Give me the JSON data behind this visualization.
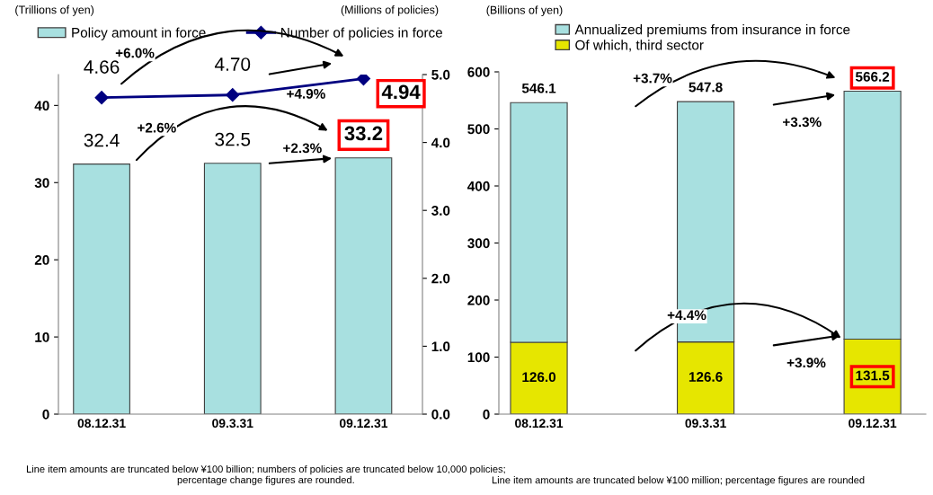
{
  "chart_data": [
    {
      "type": "bar",
      "ylabel": "(Trillions of yen)",
      "y2label": "(Millions of policies)",
      "categories": [
        "08.12.31",
        "09.3.31",
        "09.12.31"
      ],
      "series": [
        {
          "name": "Policy amount in force",
          "color": "#a8e0e0",
          "values": [
            32.4,
            32.5,
            33.2
          ],
          "value_labels": [
            "32.4",
            "32.5",
            "33.2"
          ]
        },
        {
          "name": "Number of policies in force",
          "type": "line",
          "axis": "y2",
          "color": "#000080",
          "values": [
            4.66,
            4.7,
            4.94
          ],
          "value_labels": [
            "4.66",
            "4.70",
            "4.94"
          ]
        }
      ],
      "marker": "diamond",
      "ylim": [
        0,
        44
      ],
      "yticks": [
        0,
        10,
        20,
        30,
        40
      ],
      "y2lim": [
        0,
        5
      ],
      "y2ticks": [
        {
          "value": 0,
          "label": "0.0"
        },
        {
          "value": 1,
          "label": "1.0"
        },
        {
          "value": 2,
          "label": "2.0"
        },
        {
          "value": 3,
          "label": "3.0"
        },
        {
          "value": 4,
          "label": "4.0"
        },
        {
          "value": 5,
          "label": "5.0"
        }
      ],
      "legend": "top",
      "annotations": [
        "+6.0%",
        "+4.9%",
        "+2.6%",
        "+2.3%",
        "Line item amounts are truncated below ¥100 billion; numbers of policies are truncated below 10,000 policies; percentage change figures are rounded."
      ]
    },
    {
      "type": "bar",
      "ylabel": "(Billions of yen)",
      "categories": [
        "08.12.31",
        "09.3.31",
        "09.12.31"
      ],
      "stacked": true,
      "series": [
        {
          "name": "Of which, third sector",
          "color": "#e6e600",
          "values": [
            126.0,
            126.6,
            131.5
          ],
          "value_labels": [
            "126.0",
            "126.6",
            "131.5"
          ]
        },
        {
          "name": "Annualized premiums from insurance in force",
          "color": "#a8e0e0",
          "values": [
            420.1,
            421.2,
            434.7
          ]
        }
      ],
      "totals": [
        "546.1",
        "547.8",
        "566.2"
      ],
      "ylim": [
        0,
        600
      ],
      "yticks": [
        0,
        100,
        200,
        300,
        400,
        500,
        600
      ],
      "legend": "top left",
      "annotations": [
        "+3.7%",
        "+3.3%",
        "+4.4%",
        "+3.9%",
        "Line item amounts are truncated below ¥100 million; percentage figures are rounded"
      ]
    }
  ]
}
